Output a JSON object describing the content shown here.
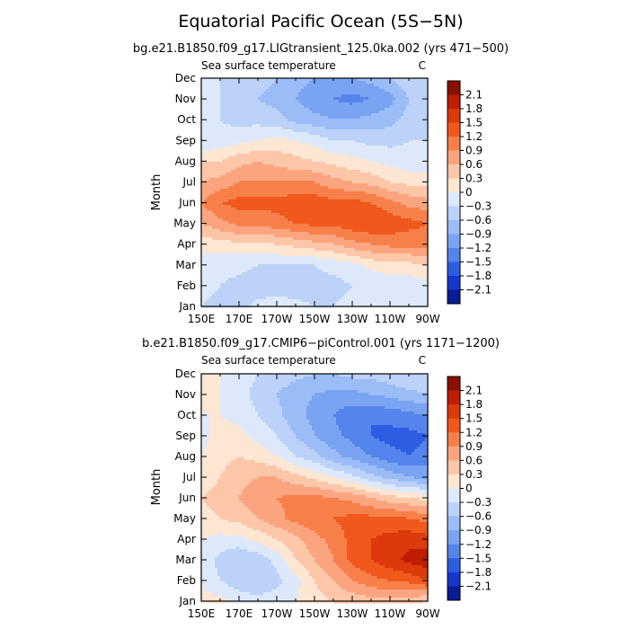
{
  "figure": {
    "title": "Equatorial Pacific Ocean (5S−5N)"
  },
  "color_scale": {
    "levels": [
      "2.1",
      "1.8",
      "1.5",
      "1.2",
      "0.9",
      "0.6",
      "0.3",
      "0",
      "−0.3",
      "−0.6",
      "−0.9",
      "−1.2",
      "−1.5",
      "−1.8",
      "−2.1"
    ],
    "colors": [
      "#8b0f00",
      "#bf1c00",
      "#dd3a0c",
      "#f0581c",
      "#f7804a",
      "#fba580",
      "#fcc6a8",
      "#fde6d2",
      "#dde9fb",
      "#bcd2f9",
      "#9bbcf6",
      "#7aa3f2",
      "#5584ec",
      "#2e5de4",
      "#1637cc",
      "#0a1b96"
    ]
  },
  "chart_data": [
    {
      "type": "heatmap",
      "subtitle": "bg.e21.B1850.f09_g17.LIGtransient_125.0ka.002 (yrs 471−500)",
      "field_label": "Sea surface temperature",
      "units": "C",
      "ylabel": "Month",
      "x_ticks": [
        "150E",
        "170E",
        "170W",
        "150W",
        "130W",
        "110W",
        "90W"
      ],
      "y_ticks": [
        "Jan",
        "Feb",
        "Mar",
        "Apr",
        "May",
        "Jun",
        "Jul",
        "Aug",
        "Sep",
        "Oct",
        "Nov",
        "Dec"
      ],
      "x_lon": [
        150,
        160,
        170,
        180,
        190,
        200,
        210,
        220,
        230,
        240,
        250,
        260,
        270
      ],
      "values": [
        [
          -0.3,
          -0.4,
          -0.4,
          -0.2,
          -0.1,
          -0.2,
          -0.3,
          -0.3,
          -0.2,
          -0.2,
          -0.2,
          -0.1,
          -0.1
        ],
        [
          -0.2,
          -0.3,
          -0.4,
          -0.5,
          -0.5,
          -0.5,
          -0.4,
          -0.4,
          -0.3,
          -0.3,
          -0.2,
          -0.2,
          -0.1
        ],
        [
          -0.1,
          -0.2,
          -0.2,
          -0.3,
          -0.3,
          -0.3,
          -0.3,
          -0.2,
          -0.1,
          0.1,
          0.2,
          0.2,
          0.3
        ],
        [
          0.1,
          0.2,
          0.2,
          0.2,
          0.3,
          0.4,
          0.5,
          0.6,
          0.8,
          0.9,
          1.0,
          1.0,
          1.1
        ],
        [
          0.6,
          0.8,
          1.0,
          1.0,
          1.1,
          1.2,
          1.3,
          1.3,
          1.4,
          1.5,
          1.4,
          1.3,
          1.2
        ],
        [
          0.9,
          1.2,
          1.3,
          1.3,
          1.3,
          1.4,
          1.4,
          1.3,
          1.3,
          1.2,
          1.0,
          0.8,
          0.7
        ],
        [
          0.6,
          0.7,
          0.9,
          0.9,
          0.9,
          0.9,
          0.9,
          0.7,
          0.6,
          0.5,
          0.3,
          0.2,
          0.2
        ],
        [
          0.3,
          0.3,
          0.5,
          0.6,
          0.5,
          0.4,
          0.3,
          0.2,
          0.1,
          0.0,
          -0.1,
          -0.2,
          -0.3
        ],
        [
          -0.3,
          -0.2,
          -0.1,
          0.0,
          0.1,
          0.0,
          -0.1,
          -0.3,
          -0.3,
          -0.4,
          -0.4,
          -0.3,
          -0.3
        ],
        [
          -0.2,
          -0.3,
          -0.4,
          -0.4,
          -0.5,
          -0.7,
          -0.8,
          -0.9,
          -0.9,
          -0.8,
          -0.7,
          -0.5,
          -0.4
        ],
        [
          -0.2,
          -0.3,
          -0.4,
          -0.6,
          -0.7,
          -0.9,
          -1.1,
          -1.2,
          -1.3,
          -1.2,
          -1.0,
          -0.6,
          -0.4
        ],
        [
          -0.2,
          -0.3,
          -0.3,
          -0.5,
          -0.6,
          -0.8,
          -0.9,
          -1.0,
          -0.9,
          -0.8,
          -0.6,
          -0.4,
          -0.3
        ]
      ]
    },
    {
      "type": "heatmap",
      "subtitle": "b.e21.B1850.f09_g17.CMIP6−piControl.001 (yrs 1171−1200)",
      "field_label": "Sea surface temperature",
      "units": "C",
      "ylabel": "Month",
      "x_ticks": [
        "150E",
        "170E",
        "170W",
        "150W",
        "130W",
        "110W",
        "90W"
      ],
      "y_ticks": [
        "Jan",
        "Feb",
        "Mar",
        "Apr",
        "May",
        "Jun",
        "Jul",
        "Aug",
        "Sep",
        "Oct",
        "Nov",
        "Dec"
      ],
      "x_lon": [
        150,
        160,
        170,
        180,
        190,
        200,
        210,
        220,
        230,
        240,
        250,
        260,
        270
      ],
      "values": [
        [
          0.1,
          0.1,
          -0.1,
          -0.2,
          -0.1,
          0.0,
          0.2,
          0.3,
          0.4,
          0.5,
          0.5,
          0.4,
          0.3
        ],
        [
          0.0,
          -0.3,
          -0.5,
          -0.6,
          -0.4,
          -0.1,
          0.3,
          0.6,
          0.9,
          1.1,
          1.2,
          1.3,
          1.5
        ],
        [
          -0.1,
          -0.4,
          -0.6,
          -0.5,
          -0.2,
          0.3,
          0.6,
          0.9,
          1.3,
          1.5,
          1.7,
          1.9,
          2.0
        ],
        [
          0.0,
          -0.1,
          -0.1,
          0.1,
          0.3,
          0.5,
          0.8,
          1.0,
          1.3,
          1.5,
          1.6,
          1.7,
          1.6
        ],
        [
          0.2,
          0.3,
          0.4,
          0.6,
          0.8,
          1.0,
          1.1,
          1.2,
          1.3,
          1.3,
          1.3,
          1.2,
          1.1
        ],
        [
          0.3,
          0.4,
          0.6,
          0.8,
          0.9,
          1.0,
          1.0,
          0.9,
          0.8,
          0.6,
          0.4,
          0.3,
          0.2
        ],
        [
          0.1,
          0.3,
          0.5,
          0.6,
          0.6,
          0.4,
          0.2,
          0.0,
          -0.2,
          -0.5,
          -0.7,
          -0.9,
          -1.0
        ],
        [
          0.0,
          0.2,
          0.3,
          0.2,
          0.0,
          -0.3,
          -0.5,
          -0.8,
          -1.0,
          -1.2,
          -1.4,
          -1.5,
          -1.4
        ],
        [
          -0.1,
          0.1,
          0.1,
          -0.1,
          -0.3,
          -0.6,
          -0.9,
          -1.1,
          -1.3,
          -1.5,
          -1.6,
          -1.6,
          -1.5
        ],
        [
          0.0,
          0.0,
          -0.1,
          -0.3,
          -0.5,
          -0.8,
          -1.0,
          -1.2,
          -1.4,
          -1.5,
          -1.4,
          -1.3,
          -1.2
        ],
        [
          0.0,
          0.0,
          -0.2,
          -0.4,
          -0.6,
          -0.8,
          -0.9,
          -1.0,
          -1.0,
          -0.9,
          -0.8,
          -0.7,
          -0.6
        ],
        [
          0.0,
          0.0,
          -0.1,
          -0.3,
          -0.4,
          -0.5,
          -0.6,
          -0.6,
          -0.5,
          -0.5,
          -0.4,
          -0.3,
          -0.3
        ]
      ]
    }
  ]
}
